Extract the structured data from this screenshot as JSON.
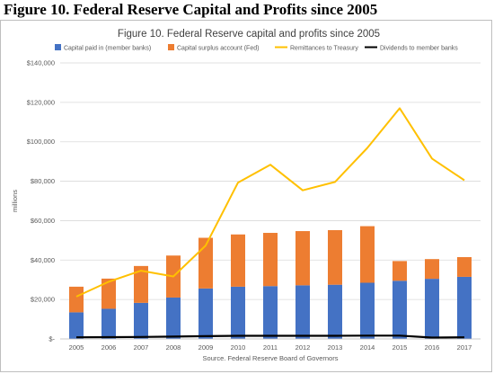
{
  "figure_heading": "Figure 10. Federal Reserve Capital and Profits since 2005",
  "chart_data": {
    "type": "bar",
    "title": "Figure 10. Federal Reserve capital and profits since 2005",
    "xlabel": "Source. Federal Reserve Board of Governors",
    "ylabel": "millions",
    "ylim": [
      0,
      140000
    ],
    "yticks": [
      0,
      20000,
      40000,
      60000,
      80000,
      100000,
      120000,
      140000
    ],
    "ytick_labels": [
      "$-",
      "$20,000",
      "$40,000",
      "$60,000",
      "$80,000",
      "$100,000",
      "$120,000",
      "$140,000"
    ],
    "categories": [
      "2005",
      "2006",
      "2007",
      "2008",
      "2009",
      "2010",
      "2011",
      "2012",
      "2013",
      "2014",
      "2015",
      "2016",
      "2017"
    ],
    "grid": true,
    "legend_position": "top",
    "stacked_bars": [
      {
        "name": "Capital paid in (member banks)",
        "color": "#4472c4",
        "values": [
          13500,
          15300,
          18300,
          21000,
          25600,
          26500,
          26800,
          27200,
          27500,
          28500,
          29500,
          30500,
          31500
        ]
      },
      {
        "name": "Capital surplus account (Fed)",
        "color": "#ed7d31",
        "values": [
          13000,
          15300,
          18700,
          21300,
          25700,
          26500,
          27000,
          27500,
          27700,
          28700,
          10000,
          10000,
          10000
        ]
      }
    ],
    "lines": [
      {
        "name": "Remittances to Treasury",
        "color": "#ffc000",
        "values": [
          21500,
          29000,
          34600,
          31700,
          47400,
          79300,
          88400,
          75400,
          79600,
          96900,
          117000,
          91500,
          80500
        ]
      },
      {
        "name": "Dividends to member banks",
        "color": "#000000",
        "values": [
          800,
          900,
          1000,
          1200,
          1400,
          1600,
          1600,
          1600,
          1600,
          1700,
          1700,
          700,
          800
        ]
      }
    ]
  }
}
